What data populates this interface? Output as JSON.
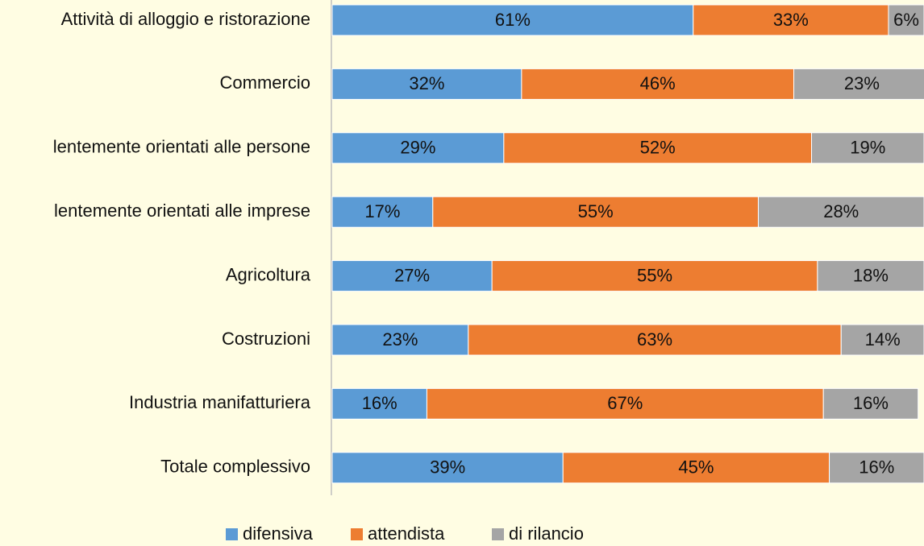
{
  "chart_data": {
    "type": "stacked_barh",
    "categories": [
      "Attività di alloggio e ristorazione",
      "Commercio",
      "lentemente orientati alle persone",
      "lentemente orientati alle imprese",
      "Agricoltura",
      "Costruzioni",
      "Industria manifatturiera",
      "Totale complessivo"
    ],
    "series": [
      {
        "name": "difensiva",
        "color": "#5b9bd5",
        "values": [
          61,
          32,
          29,
          17,
          27,
          23,
          16,
          39
        ],
        "value_labels": [
          "61%",
          "32%",
          "29%",
          "17%",
          "27%",
          "23%",
          "16%",
          "39%"
        ]
      },
      {
        "name": "attendista",
        "color": "#ed7d31",
        "values": [
          33,
          46,
          52,
          55,
          55,
          63,
          67,
          45
        ],
        "value_labels": [
          "33%",
          "46%",
          "52%",
          "55%",
          "55%",
          "63%",
          "67%",
          "45%"
        ]
      },
      {
        "name": "di rilancio",
        "color": "#a5a5a5",
        "values": [
          6,
          23,
          19,
          28,
          18,
          14,
          16,
          16
        ],
        "value_labels": [
          "6%",
          "23%",
          "19%",
          "28%",
          "18%",
          "14%",
          "16%",
          "16%"
        ]
      }
    ],
    "xlim": [
      0,
      100
    ],
    "legend": "bottom"
  }
}
